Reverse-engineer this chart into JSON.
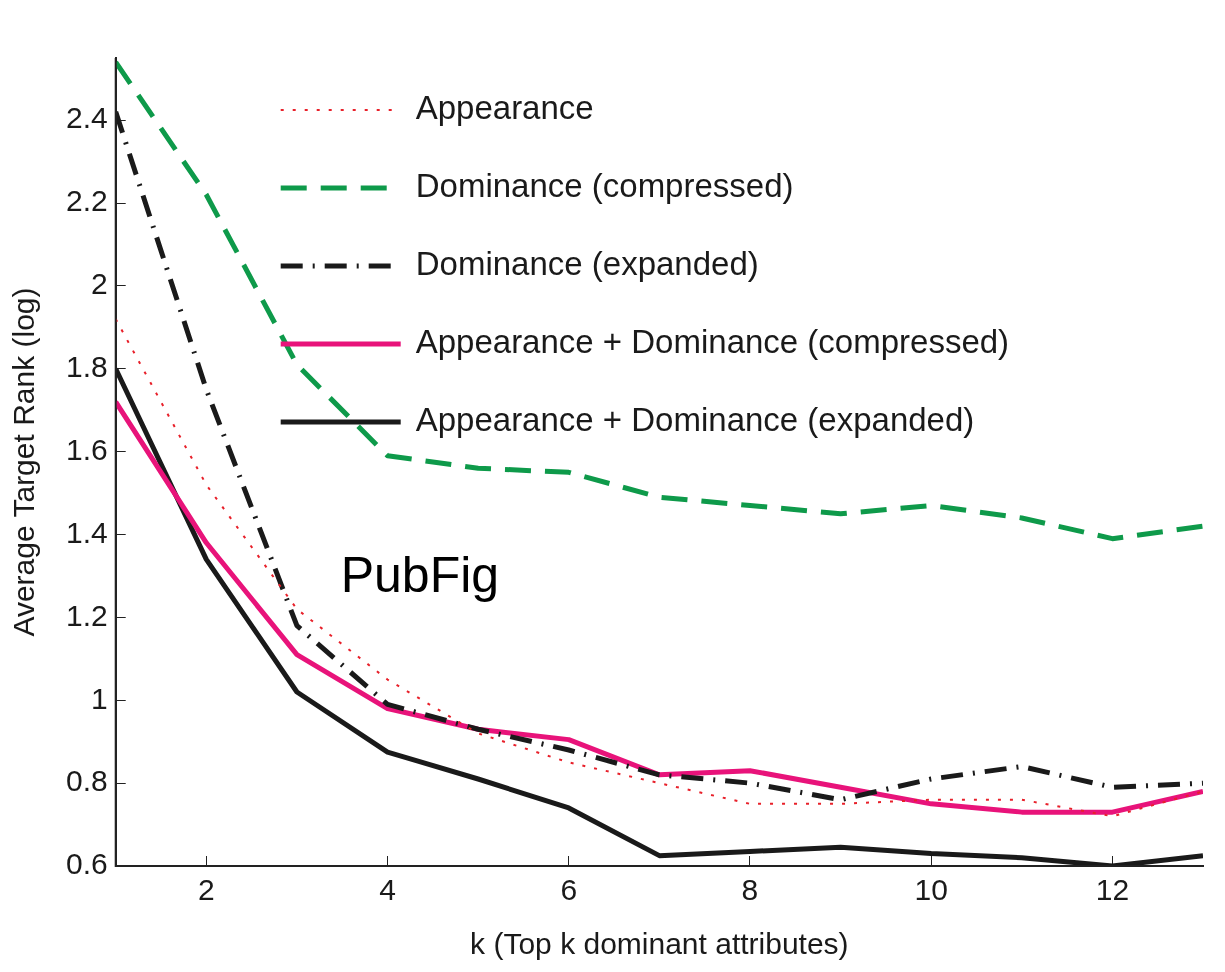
{
  "chart_data": {
    "type": "line",
    "xlabel": "k (Top k dominant attributes)",
    "ylabel": "Average Target Rank (log)",
    "x": [
      1,
      2,
      3,
      4,
      5,
      6,
      7,
      8,
      9,
      10,
      11,
      12,
      13
    ],
    "xlim": [
      1,
      13
    ],
    "xticks": [
      2,
      4,
      6,
      8,
      10,
      12
    ],
    "ylim": [
      0.6,
      2.55
    ],
    "yticks": [
      0.6,
      0.8,
      1,
      1.2,
      1.4,
      1.6,
      1.8,
      2,
      2.2,
      2.4
    ],
    "grid": false,
    "legend": "top right",
    "marker": "none",
    "annotations": [
      "PubFig"
    ],
    "series": [
      {
        "name": "Appearance",
        "color": "#e8202a",
        "line_style": "dotted",
        "values": [
          1.92,
          1.52,
          1.22,
          1.05,
          0.92,
          0.85,
          0.8,
          0.75,
          0.75,
          0.76,
          0.76,
          0.72,
          0.78
        ]
      },
      {
        "name": "Dominance (compressed)",
        "color": "#0e9a4a",
        "line_style": "dashed",
        "values": [
          2.54,
          2.22,
          1.81,
          1.59,
          1.56,
          1.55,
          1.49,
          1.47,
          1.45,
          1.47,
          1.44,
          1.39,
          1.42
        ]
      },
      {
        "name": "Dominance (expanded)",
        "color": "#1a1a1a",
        "line_style": "dashdot",
        "values": [
          2.42,
          1.75,
          1.18,
          0.99,
          0.93,
          0.88,
          0.82,
          0.8,
          0.76,
          0.81,
          0.84,
          0.79,
          0.8
        ]
      },
      {
        "name": "Appearance + Dominance (compressed)",
        "color": "#e8137a",
        "line_style": "solid",
        "values": [
          1.72,
          1.38,
          1.11,
          0.98,
          0.93,
          0.905,
          0.82,
          0.83,
          0.79,
          0.75,
          0.73,
          0.73,
          0.78
        ]
      },
      {
        "name": "Appearance + Dominance (expanded)",
        "color": "#1a1a1a",
        "line_style": "solid",
        "values": [
          1.8,
          1.34,
          1.02,
          0.875,
          0.81,
          0.74,
          0.625,
          0.635,
          0.645,
          0.63,
          0.62,
          0.6,
          0.625
        ]
      }
    ]
  }
}
